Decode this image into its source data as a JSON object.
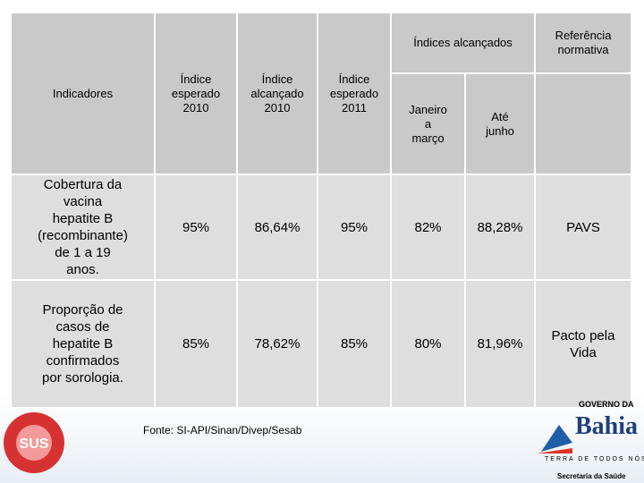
{
  "table": {
    "group_header": "Índices alcançados",
    "reference_header": "Referência normativa",
    "columns": [
      "Indicadores",
      "Índice esperado 2010",
      "Índice alcançado 2010",
      "Índice esperado 2011",
      "Janeiro a março",
      "Até junho"
    ],
    "rows": [
      [
        "Cobertura da vacina hepatite B (recombinante) de 1 a 19 anos.",
        "95%",
        "86,64%",
        "95%",
        "82%",
        "88,28%",
        "PAVS"
      ],
      [
        "Proporção de casos de hepatite B confirmados por sorologia.",
        "85%",
        "78,62%",
        "85%",
        "80%",
        "81,96%",
        "Pacto pela Vida"
      ]
    ]
  },
  "source": "Fonte: SI-API/Sinan/Divep/Sesab",
  "logos": {
    "sus": "SUS",
    "governo": "GOVERNO DA",
    "bahia": "Bahia",
    "slogan": "TERRA DE TODOS NÓS",
    "secretaria": "Secretaria da Saúde"
  }
}
